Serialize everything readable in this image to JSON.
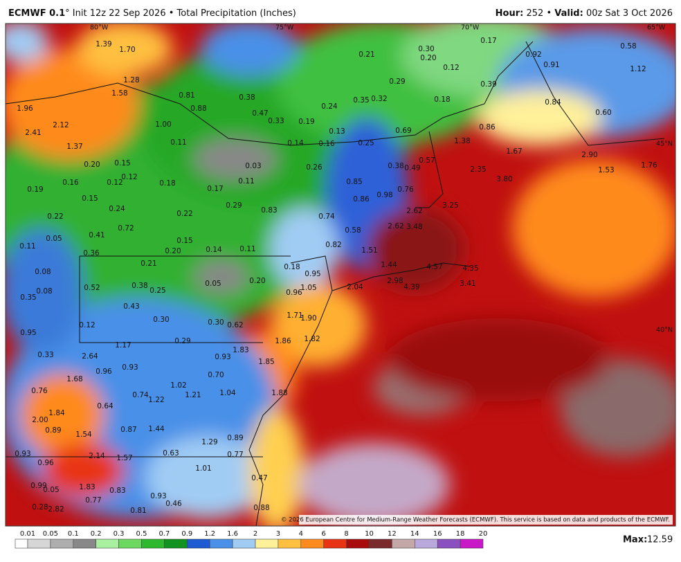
{
  "header": {
    "model": "ECMWF 0.1",
    "degree": "°",
    "init": "Init 12z 22 Sep 2026",
    "product": "Total Precipitation (Inches)",
    "hour_label": "Hour:",
    "hour": "252",
    "valid_label": "Valid:",
    "valid": "00z Sat 3 Oct 2026"
  },
  "map": {
    "axis_labels": [
      "80°W",
      "75°W",
      "70°W",
      "65°W",
      "45°N",
      "40°N"
    ],
    "point_labels": [
      "1.39",
      "1.70",
      "1.28",
      "1.58",
      "0.81",
      "0.88",
      "0.38",
      "0.47",
      "0.33",
      "0.19",
      "0.24",
      "0.35",
      "0.32",
      "0.21",
      "0.30",
      "0.20",
      "0.12",
      "0.17",
      "0.29",
      "0.18",
      "0.39",
      "0.92",
      "0.91",
      "0.58",
      "1.12",
      "0.84",
      "0.60",
      "0.86",
      "0.69",
      "1.38",
      "1.67",
      "2.90",
      "1.53",
      "1.76",
      "2.35",
      "3.80",
      "3.25",
      "0.57",
      "0.49",
      "0.38",
      "0.76",
      "0.98",
      "0.85",
      "0.86",
      "0.74",
      "0.58",
      "0.82",
      "2.62",
      "2.62",
      "3.48",
      "1.51",
      "1.44",
      "4.57",
      "4.35",
      "3.41",
      "2.98",
      "4.39",
      "2.04",
      "1.05",
      "0.95",
      "0.96",
      "1.71",
      "1.90",
      "1.82",
      "1.86",
      "1.85",
      "1.88",
      "0.18",
      "0.20",
      "0.83",
      "0.29",
      "0.17",
      "0.11",
      "0.03",
      "0.26",
      "0.16",
      "0.13",
      "0.14",
      "0.25",
      "2.41",
      "2.12",
      "1.96",
      "1.00",
      "0.11",
      "1.37",
      "0.15",
      "0.12",
      "0.20",
      "0.12",
      "0.18",
      "0.19",
      "0.16",
      "0.15",
      "0.24",
      "0.22",
      "0.22",
      "0.72",
      "0.05",
      "0.41",
      "0.11",
      "0.36",
      "0.15",
      "0.14",
      "0.11",
      "0.20",
      "0.21",
      "0.08",
      "0.52",
      "0.38",
      "0.25",
      "0.05",
      "0.08",
      "0.35",
      "0.43",
      "0.30",
      "0.30",
      "0.62",
      "0.12",
      "0.95",
      "1.17",
      "0.29",
      "0.33",
      "2.64",
      "0.93",
      "1.83",
      "0.96",
      "0.93",
      "1.68",
      "0.70",
      "1.02",
      "0.76",
      "0.74",
      "1.22",
      "1.21",
      "1.04",
      "0.64",
      "1.84",
      "2.00",
      "0.89",
      "1.54",
      "0.87",
      "1.44",
      "1.29",
      "0.89",
      "0.93",
      "0.96",
      "2.14",
      "1.57",
      "0.63",
      "0.77",
      "1.01",
      "0.47",
      "0.99",
      "0.05",
      "1.83",
      "0.83",
      "0.77",
      "0.93",
      "0.46",
      "0.81",
      "0.28",
      "2.82",
      "0.88"
    ],
    "copyright": "© 2026 European Centre for Medium-Range Weather Forecasts (ECMWF). This service is based on data and products of the ECMWF."
  },
  "legend": {
    "ticks": [
      0.01,
      0.05,
      0.1,
      0.2,
      0.3,
      0.5,
      0.7,
      0.9,
      1.2,
      1.6,
      2,
      3,
      4,
      6,
      8,
      10,
      12,
      14,
      16,
      18,
      20
    ],
    "colors": [
      "#ffffff",
      "#d6d6d6",
      "#aeaeae",
      "#888888",
      "#a8f0a0",
      "#6cd860",
      "#2eb82e",
      "#129220",
      "#1e5ad2",
      "#4a90e8",
      "#a0ccf4",
      "#fff09a",
      "#ffc040",
      "#ff8a1e",
      "#e83412",
      "#a80c0c",
      "#7a2a2a",
      "#c4a8a8",
      "#b8a8dc",
      "#8a50c0",
      "#c818c8"
    ]
  },
  "footer": {
    "max_label": "Max:",
    "max_value": "12.59"
  }
}
